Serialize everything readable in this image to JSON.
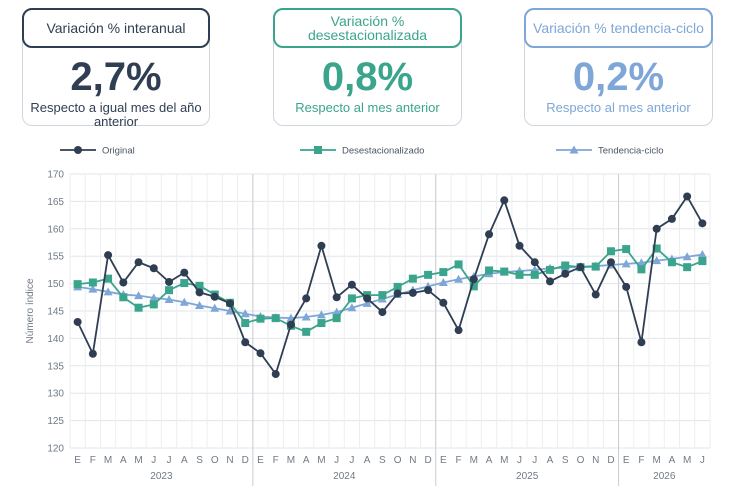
{
  "kpis": [
    {
      "title": "Variación % interanual",
      "value": "2,7%",
      "subtitle": "Respecto a igual mes del año anterior",
      "color": "#2f3e53"
    },
    {
      "title": "Variación % desestacionalizada",
      "value": "0,8%",
      "subtitle": "Respecto al mes anterior",
      "color": "#3aa58c"
    },
    {
      "title": "Variación % tendencia-ciclo",
      "value": "0,2%",
      "subtitle": "Respecto al mes anterior",
      "color": "#7ea6d6"
    }
  ],
  "chart_data": {
    "type": "line",
    "ylabel": "Número índice",
    "ylim": [
      120,
      170
    ],
    "yticks": [
      120,
      125,
      130,
      135,
      140,
      145,
      150,
      155,
      160,
      165,
      170
    ],
    "grid": true,
    "legend": "top",
    "categories": [
      "E",
      "F",
      "M",
      "A",
      "M",
      "J",
      "J",
      "A",
      "S",
      "O",
      "N",
      "D",
      "E",
      "F",
      "M",
      "A",
      "M",
      "J",
      "J",
      "A",
      "S",
      "O",
      "N",
      "D",
      "E",
      "F",
      "M",
      "A",
      "M",
      "J",
      "J",
      "A",
      "S",
      "O",
      "N",
      "D",
      "E",
      "F",
      "M",
      "A",
      "M",
      "J"
    ],
    "years": [
      {
        "label": "2023",
        "start": 0,
        "end": 11
      },
      {
        "label": "2024",
        "start": 12,
        "end": 23
      },
      {
        "label": "2025",
        "start": 24,
        "end": 35
      },
      {
        "label": "2026",
        "start": 36,
        "end": 41
      }
    ],
    "series": [
      {
        "name": "Original",
        "color": "#2f3e53",
        "marker": "circle",
        "values": [
          143.0,
          137.2,
          155.2,
          150.2,
          153.9,
          152.8,
          150.3,
          152.0,
          148.4,
          147.6,
          146.4,
          139.3,
          137.3,
          133.5,
          142.5,
          147.3,
          156.9,
          147.5,
          149.8,
          147.3,
          144.8,
          148.2,
          148.3,
          148.8,
          146.5,
          141.5,
          150.8,
          159.0,
          165.2,
          156.9,
          153.9,
          150.4,
          151.8,
          153.0,
          148.0,
          153.9,
          149.4,
          139.3,
          160.0,
          161.8,
          165.9,
          161.0
        ]
      },
      {
        "name": "Desestacionalizado",
        "color": "#3aa58c",
        "marker": "square",
        "values": [
          149.9,
          150.2,
          150.9,
          147.5,
          145.6,
          146.2,
          148.8,
          150.1,
          149.6,
          148.0,
          146.5,
          142.8,
          143.6,
          143.7,
          142.3,
          141.2,
          142.8,
          143.7,
          147.3,
          147.9,
          147.9,
          149.4,
          150.9,
          151.6,
          152.1,
          153.5,
          149.5,
          152.4,
          152.2,
          151.6,
          151.6,
          152.5,
          153.3,
          153.0,
          153.1,
          155.9,
          156.3,
          152.6,
          156.4,
          153.9,
          153.0,
          154.1
        ]
      },
      {
        "name": "Tendencia-ciclo",
        "color": "#7ea6d6",
        "marker": "triangle",
        "values": [
          149.4,
          149.0,
          148.5,
          148.0,
          147.8,
          147.4,
          147.1,
          146.6,
          146.0,
          145.5,
          145.0,
          144.5,
          144.0,
          143.8,
          143.7,
          143.9,
          144.3,
          144.8,
          145.6,
          146.4,
          147.2,
          148.0,
          148.8,
          149.5,
          150.2,
          150.8,
          151.3,
          151.8,
          152.1,
          152.3,
          152.5,
          152.8,
          152.9,
          153.1,
          153.2,
          153.4,
          153.6,
          153.8,
          154.2,
          154.5,
          154.9,
          155.3
        ]
      }
    ]
  }
}
